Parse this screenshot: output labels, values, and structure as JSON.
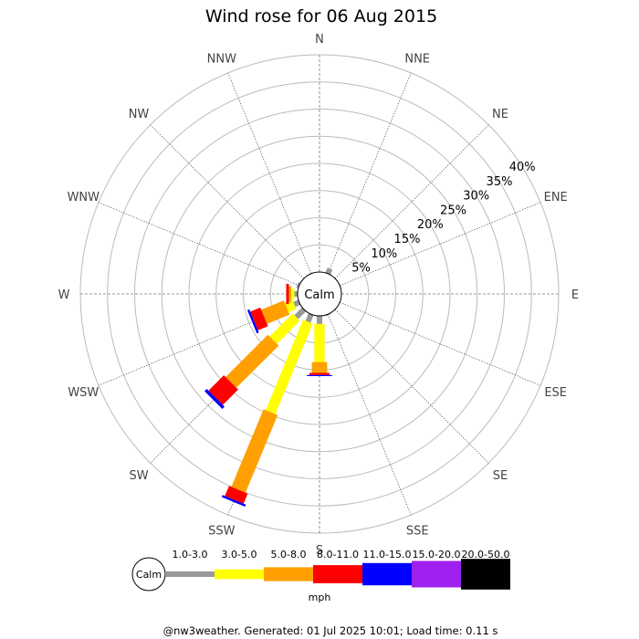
{
  "chart_data": {
    "type": "wind-rose",
    "title": "Wind rose for 06 Aug 2015",
    "calm_label": "Calm",
    "unit": "mph",
    "directions": [
      "N",
      "NNE",
      "NE",
      "ENE",
      "E",
      "ESE",
      "SE",
      "SSE",
      "S",
      "SSW",
      "SW",
      "WSW",
      "W",
      "WNW",
      "NW",
      "NNW"
    ],
    "rings": [
      "5%",
      "10%",
      "15%",
      "20%",
      "25%",
      "30%",
      "35%",
      "40%"
    ],
    "ring_max": 40,
    "bins": [
      {
        "label": "1.0-3.0",
        "color": "#999999"
      },
      {
        "label": "3.0-5.0",
        "color": "#ffff00"
      },
      {
        "label": "5.0-8.0",
        "color": "#ffa000"
      },
      {
        "label": "8.0-11.0",
        "color": "#ff0000"
      },
      {
        "label": "11.0-15.0",
        "color": "#0000ff"
      },
      {
        "label": "15.0-20.0",
        "color": "#a020f0"
      },
      {
        "label": "20.0-50.0",
        "color": "#000000"
      }
    ],
    "series": [
      {
        "direction": "NNE",
        "values": [
          1.0,
          0,
          0,
          0,
          0,
          0,
          0
        ]
      },
      {
        "direction": "SSE",
        "values": [
          0.2,
          0,
          0,
          0,
          0,
          0,
          0
        ]
      },
      {
        "direction": "S",
        "values": [
          1.5,
          7.0,
          2.0,
          0.4,
          0.2,
          0,
          0
        ]
      },
      {
        "direction": "SSW",
        "values": [
          1.5,
          18.0,
          15.5,
          2.0,
          0.4,
          0,
          0
        ]
      },
      {
        "direction": "SW",
        "values": [
          2.0,
          6.0,
          11.0,
          4.0,
          0.6,
          0,
          0
        ]
      },
      {
        "direction": "WSW",
        "values": [
          1.0,
          1.5,
          4.5,
          2.0,
          0.4,
          0,
          0
        ]
      },
      {
        "direction": "W",
        "values": [
          0.6,
          0.6,
          0.4,
          0.5,
          0,
          0,
          0
        ]
      },
      {
        "direction": "WNW",
        "values": [
          0.4,
          0,
          0,
          0,
          0,
          0,
          0
        ]
      }
    ]
  },
  "footer": "@nw3weather. Generated: 01 Jul 2025 10:01; Load time: 0.11 s"
}
